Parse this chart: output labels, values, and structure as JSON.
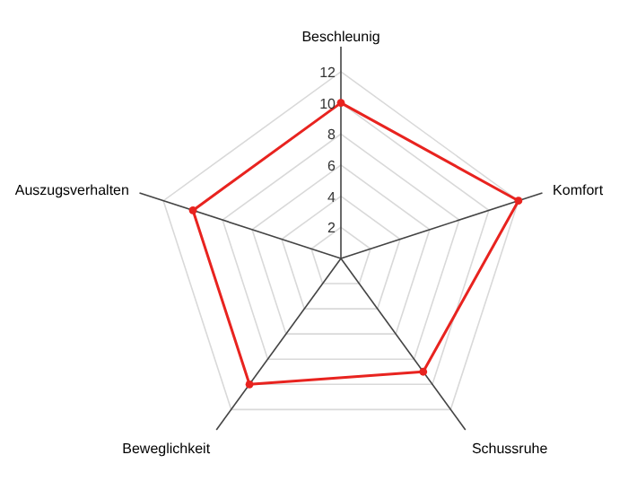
{
  "chart_data": {
    "type": "radar",
    "categories": [
      "Beschleunig",
      "Komfort",
      "Schussruhe",
      "Beweglichkeit",
      "Auszugsverhalten"
    ],
    "series": [
      {
        "color": "#e8231f",
        "values": [
          10,
          12,
          9,
          10,
          10
        ]
      }
    ],
    "ylim": [
      0,
      12
    ],
    "yticks": [
      2,
      4,
      6,
      8,
      10,
      12
    ],
    "grid": true,
    "marker": "circle"
  }
}
